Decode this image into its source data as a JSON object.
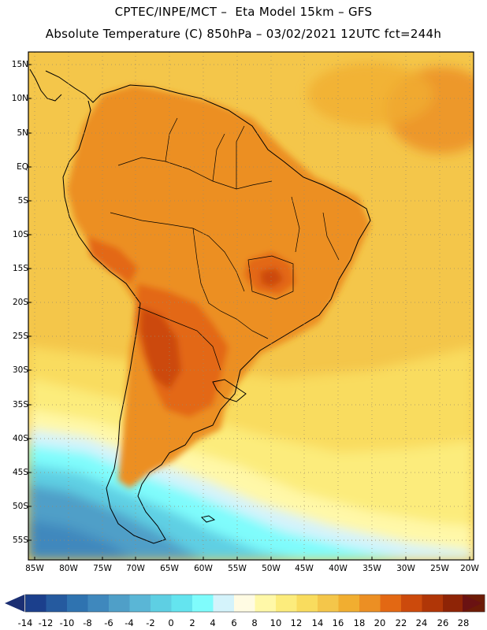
{
  "header": {
    "line1": "CPTEC/INPE/MCT –  Eta Model 15km – GFS",
    "line2": "Absolute Temperature (C) 850hPa – 03/02/2021 12UTC fct=244h"
  },
  "map": {
    "lat_labels": [
      "15N",
      "10N",
      "5N",
      "EQ",
      "5S",
      "10S",
      "15S",
      "20S",
      "25S",
      "30S",
      "35S",
      "40S",
      "45S",
      "50S",
      "55S"
    ],
    "lon_labels": [
      "85W",
      "80W",
      "75W",
      "70W",
      "65W",
      "60W",
      "55W",
      "50W",
      "45W",
      "40W",
      "35W",
      "30W",
      "25W",
      "20W"
    ],
    "extent": {
      "lon_min": -86,
      "lon_max": -20,
      "lat_min": -58,
      "lat_max": 17
    }
  },
  "colorbar": {
    "labels": [
      "-14",
      "-12",
      "-10",
      "-8",
      "-6",
      "-4",
      "-2",
      "0",
      "2",
      "4",
      "6",
      "8",
      "10",
      "12",
      "14",
      "16",
      "18",
      "20",
      "22",
      "24",
      "26",
      "28"
    ],
    "colors": [
      "#1b3f8c",
      "#255a9f",
      "#2f73b0",
      "#3f88bd",
      "#4f9fc8",
      "#5ab6d6",
      "#5ecfe3",
      "#64e4ef",
      "#7ffcfc",
      "#d4f3fb",
      "#fffbe3",
      "#fff8a8",
      "#fcec7c",
      "#f9dc5e",
      "#f4c64a",
      "#f1ae30",
      "#ec8f23",
      "#e36813",
      "#cc4a0c",
      "#b03607",
      "#8e2406",
      "#6d1b06"
    ],
    "under_color": "#1b2f73",
    "over_color": "#6a1212"
  }
}
